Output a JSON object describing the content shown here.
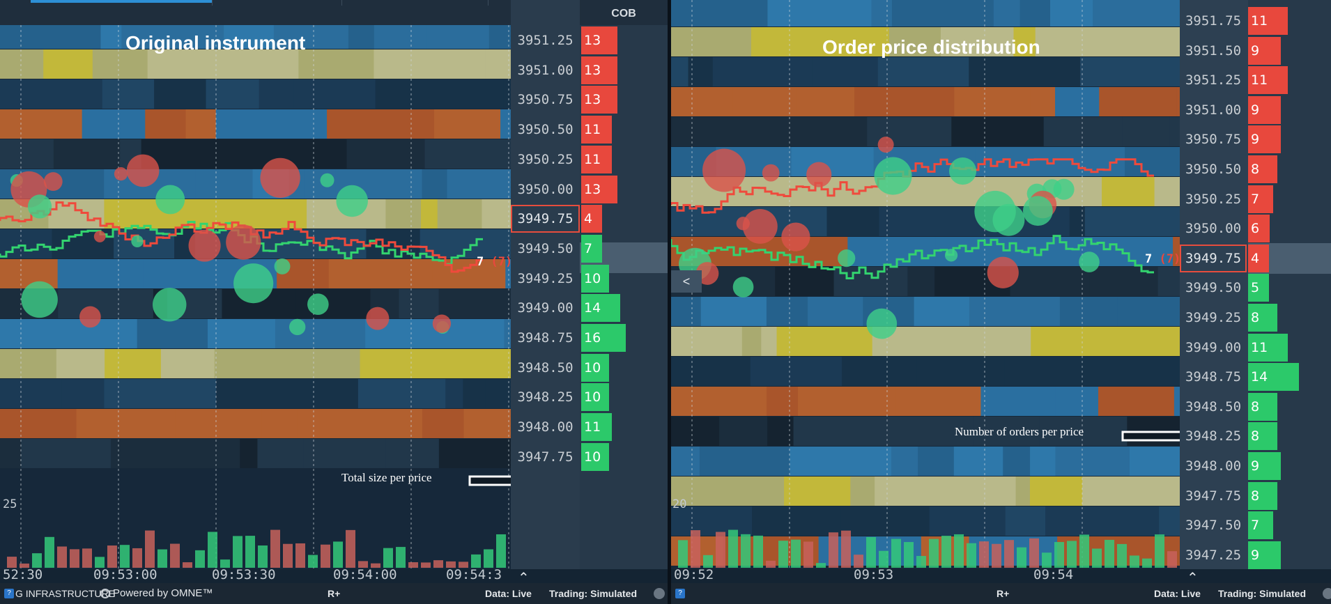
{
  "left": {
    "title": "Original instrument",
    "cob_header": "COB",
    "annotation": "Total size per price",
    "trade_label": {
      "size": "7",
      "count": "(7)"
    },
    "scale_label": "25",
    "time_labels": [
      "52:30",
      "09:53:00",
      "09:53:30",
      "09:54:00",
      "09:54:3"
    ],
    "ladder": [
      {
        "price": "3951.25",
        "value": "13",
        "side": "ask"
      },
      {
        "price": "3951.00",
        "value": "13",
        "side": "ask"
      },
      {
        "price": "3950.75",
        "value": "13",
        "side": "ask"
      },
      {
        "price": "3950.50",
        "value": "11",
        "side": "ask"
      },
      {
        "price": "3950.25",
        "value": "11",
        "side": "ask"
      },
      {
        "price": "3950.00",
        "value": "13",
        "side": "ask"
      },
      {
        "price": "3949.75",
        "value": "4",
        "side": "ask",
        "current": true
      },
      {
        "price": "3949.50",
        "value": "7",
        "side": "bid"
      },
      {
        "price": "3949.25",
        "value": "10",
        "side": "bid"
      },
      {
        "price": "3949.00",
        "value": "14",
        "side": "bid"
      },
      {
        "price": "3948.75",
        "value": "16",
        "side": "bid"
      },
      {
        "price": "3948.50",
        "value": "10",
        "side": "bid"
      },
      {
        "price": "3948.25",
        "value": "10",
        "side": "bid"
      },
      {
        "price": "3948.00",
        "value": "11",
        "side": "bid"
      },
      {
        "price": "3947.75",
        "value": "10",
        "side": "bid"
      }
    ],
    "status": {
      "infra_label": "G INFRASTRUCTURE",
      "powered_by": "Powered by OMNE™",
      "rplus": "R+",
      "data": "Data: Live",
      "trading": "Trading: Simulated"
    }
  },
  "right": {
    "title": "Order price distribution",
    "annotation": "Number of orders per price",
    "trade_label": {
      "size": "7",
      "count": "(7)"
    },
    "scale_label": "20",
    "time_labels": [
      "09:52",
      "09:53",
      "09:54"
    ],
    "collapse_button": "<",
    "ladder": [
      {
        "price": "3951.75",
        "value": "11",
        "side": "ask"
      },
      {
        "price": "3951.50",
        "value": "9",
        "side": "ask"
      },
      {
        "price": "3951.25",
        "value": "11",
        "side": "ask"
      },
      {
        "price": "3951.00",
        "value": "9",
        "side": "ask"
      },
      {
        "price": "3950.75",
        "value": "9",
        "side": "ask"
      },
      {
        "price": "3950.50",
        "value": "8",
        "side": "ask"
      },
      {
        "price": "3950.25",
        "value": "7",
        "side": "ask"
      },
      {
        "price": "3950.00",
        "value": "6",
        "side": "ask"
      },
      {
        "price": "3949.75",
        "value": "4",
        "side": "ask",
        "current": true
      },
      {
        "price": "3949.50",
        "value": "5",
        "side": "bid"
      },
      {
        "price": "3949.25",
        "value": "8",
        "side": "bid"
      },
      {
        "price": "3949.00",
        "value": "11",
        "side": "bid"
      },
      {
        "price": "3948.75",
        "value": "14",
        "side": "bid"
      },
      {
        "price": "3948.50",
        "value": "8",
        "side": "bid"
      },
      {
        "price": "3948.25",
        "value": "8",
        "side": "bid"
      },
      {
        "price": "3948.00",
        "value": "9",
        "side": "bid"
      },
      {
        "price": "3947.75",
        "value": "8",
        "side": "bid"
      },
      {
        "price": "3947.50",
        "value": "7",
        "side": "bid"
      },
      {
        "price": "3947.25",
        "value": "9",
        "side": "bid"
      }
    ],
    "status": {
      "rplus": "R+",
      "data": "Data: Live",
      "trading": "Trading: Simulated"
    }
  },
  "colors": {
    "ask": "#e8483d",
    "bid": "#2cc96a",
    "ask_line": "#ef4a3c",
    "bid_line": "#33d46f",
    "heat_orange": "#b0552a",
    "heat_olive": "#a9aa70",
    "heat_blue": "#2a6fa0",
    "heat_dark": "#152330"
  }
}
